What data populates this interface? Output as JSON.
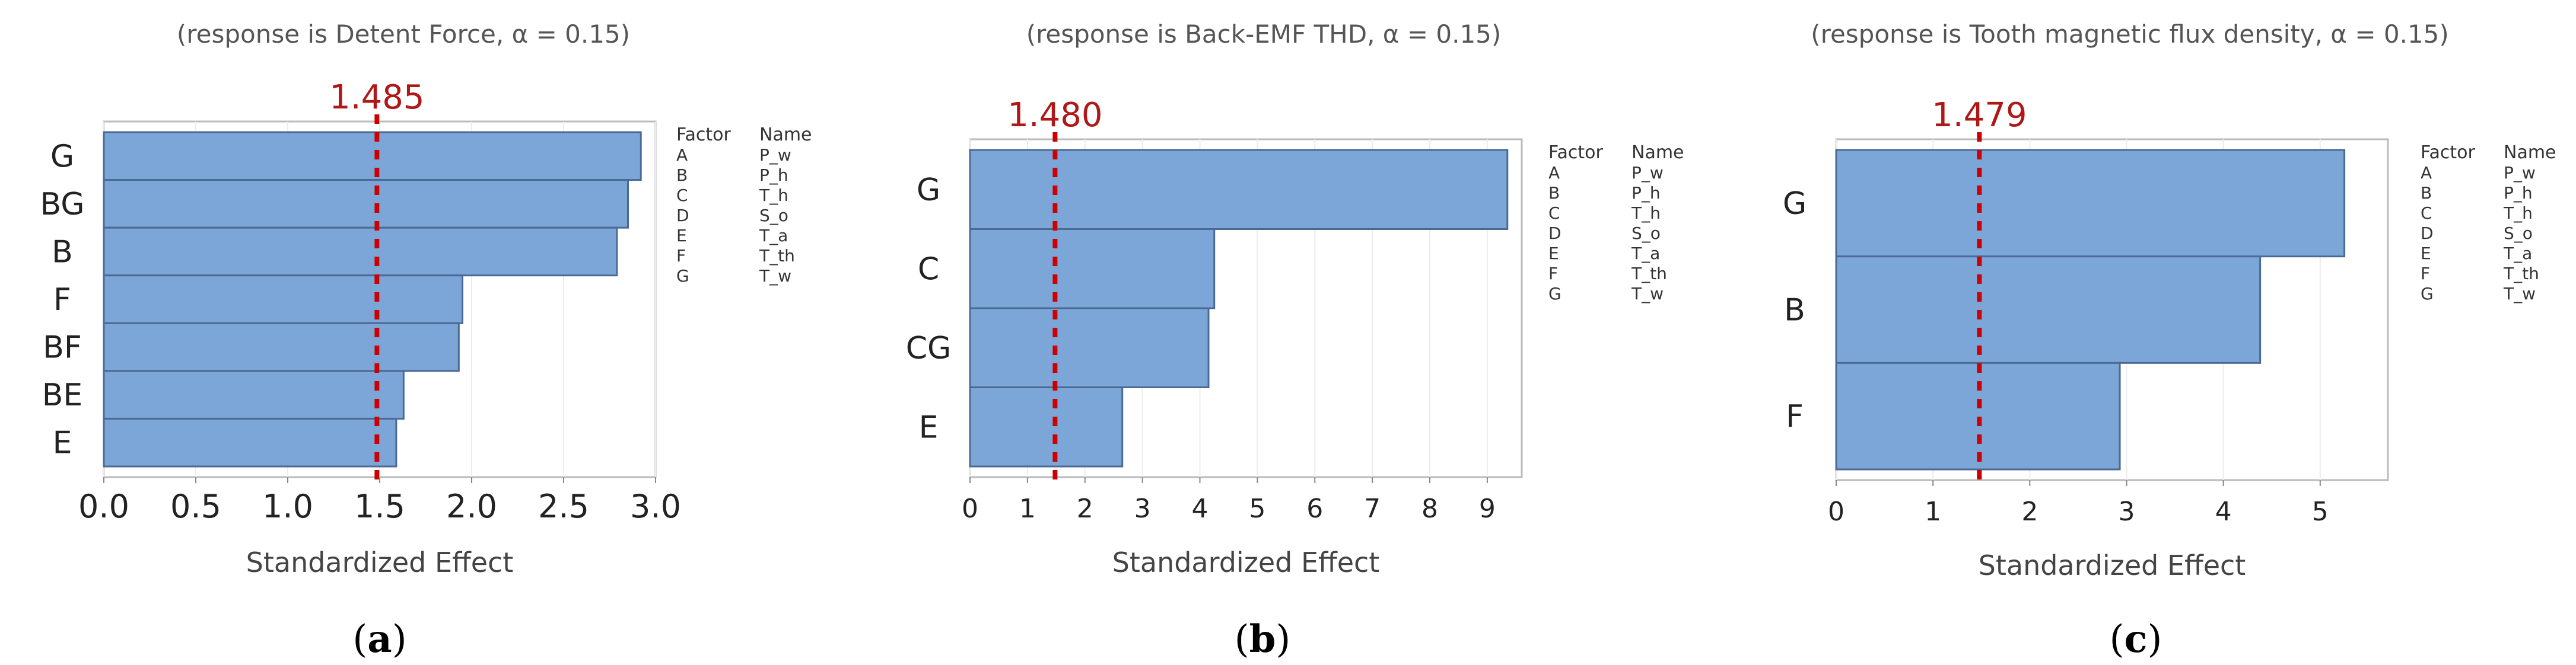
{
  "figure": {
    "panels": [
      {
        "caption": "a",
        "chart_data": {
          "type": "bar",
          "orientation": "horizontal",
          "title": "(response is Detent Force, α = 0.15)",
          "xlabel": "Standardized Effect",
          "ylabel": "",
          "categories": [
            "G",
            "BG",
            "B",
            "F",
            "BF",
            "BE",
            "E"
          ],
          "values": [
            2.92,
            2.85,
            2.79,
            1.95,
            1.93,
            1.63,
            1.59
          ],
          "xlim": [
            0,
            3.0
          ],
          "xticks": [
            "0.0",
            "0.5",
            "1.0",
            "1.5",
            "2.0",
            "2.5",
            "3.0"
          ],
          "xtick_values": [
            0,
            0.5,
            1.0,
            1.5,
            2.0,
            2.5,
            3.0
          ],
          "reference_line": {
            "value": 1.485,
            "label": "1.485",
            "color": "#cc0000",
            "style": "dashed"
          },
          "grid": true,
          "bar_color": "#7da6d8",
          "legend": {
            "placement": "right",
            "headers": [
              "Factor",
              "Name"
            ],
            "rows": [
              [
                "A",
                "P_w"
              ],
              [
                "B",
                "P_h"
              ],
              [
                "C",
                "T_h"
              ],
              [
                "D",
                "S_o"
              ],
              [
                "E",
                "T_a"
              ],
              [
                "F",
                "T_th"
              ],
              [
                "G",
                "T_w"
              ]
            ]
          }
        }
      },
      {
        "caption": "b",
        "chart_data": {
          "type": "bar",
          "orientation": "horizontal",
          "title": "(response is Back-EMF THD, α = 0.15)",
          "xlabel": "Standardized Effect",
          "ylabel": "",
          "categories": [
            "G",
            "C",
            "CG",
            "E"
          ],
          "values": [
            9.35,
            4.25,
            4.15,
            2.65
          ],
          "xlim": [
            0,
            9.6
          ],
          "xticks": [
            "0",
            "1",
            "2",
            "3",
            "4",
            "5",
            "6",
            "7",
            "8",
            "9"
          ],
          "xtick_values": [
            0,
            1,
            2,
            3,
            4,
            5,
            6,
            7,
            8,
            9
          ],
          "reference_line": {
            "value": 1.48,
            "label": "1.480",
            "color": "#cc0000",
            "style": "dashed"
          },
          "grid": true,
          "bar_color": "#7da6d8",
          "legend": {
            "placement": "right",
            "headers": [
              "Factor",
              "Name"
            ],
            "rows": [
              [
                "A",
                "P_w"
              ],
              [
                "B",
                "P_h"
              ],
              [
                "C",
                "T_h"
              ],
              [
                "D",
                "S_o"
              ],
              [
                "E",
                "T_a"
              ],
              [
                "F",
                "T_th"
              ],
              [
                "G",
                "T_w"
              ]
            ]
          }
        }
      },
      {
        "caption": "c",
        "chart_data": {
          "type": "bar",
          "orientation": "horizontal",
          "title": "(response is Tooth magnetic flux density, α = 0.15)",
          "xlabel": "Standardized Effect",
          "ylabel": "",
          "categories": [
            "G",
            "B",
            "F"
          ],
          "values": [
            5.25,
            4.38,
            2.93
          ],
          "xlim": [
            0,
            5.7
          ],
          "xticks": [
            "0",
            "1",
            "2",
            "3",
            "4",
            "5"
          ],
          "xtick_values": [
            0,
            1,
            2,
            3,
            4,
            5
          ],
          "reference_line": {
            "value": 1.479,
            "label": "1.479",
            "color": "#cc0000",
            "style": "dashed"
          },
          "grid": true,
          "bar_color": "#7da6d8",
          "legend": {
            "placement": "right",
            "headers": [
              "Factor",
              "Name"
            ],
            "rows": [
              [
                "A",
                "P_w"
              ],
              [
                "B",
                "P_h"
              ],
              [
                "C",
                "T_h"
              ],
              [
                "D",
                "S_o"
              ],
              [
                "E",
                "T_a"
              ],
              [
                "F",
                "T_th"
              ],
              [
                "G",
                "T_w"
              ]
            ]
          }
        }
      }
    ]
  }
}
